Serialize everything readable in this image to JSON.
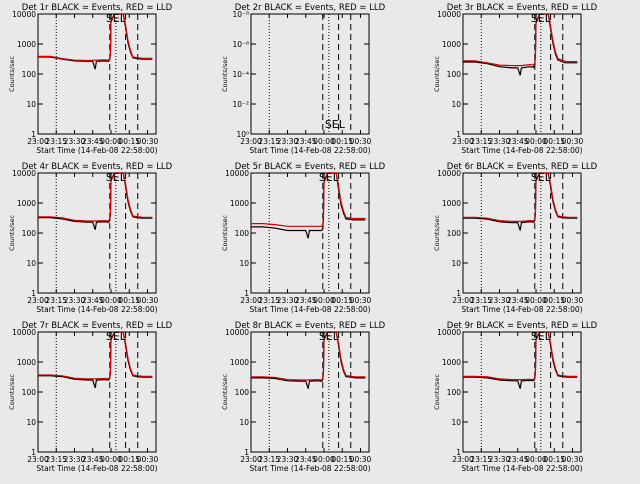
{
  "chart_data": {
    "type": "line",
    "x_tick_labels": [
      "23:00",
      "23:15",
      "23:30",
      "23:45",
      "00:00",
      "00:15",
      "00:30"
    ],
    "x_label": "Start Time (14-Feb-08 22:58:00)",
    "y_label": "Counts/sec",
    "line_colors": {
      "events": "#000000",
      "lld": "#d40000"
    },
    "reference_lines": {
      "dotted": [
        "23:15",
        "00:04"
      ],
      "dashed": [
        "23:59",
        "00:12",
        "00:22"
      ]
    },
    "x": [
      "23:00",
      "23:10",
      "23:20",
      "23:30",
      "23:40",
      "23:44",
      "23:45",
      "23:47",
      "23:48",
      "23:55",
      "23:58",
      "23:59",
      "23:59:30",
      "00:00",
      "00:03",
      "00:05",
      "00:08",
      "00:10",
      "00:12",
      "00:14",
      "00:16",
      "00:18",
      "00:22",
      "00:24",
      "00:26",
      "00:30",
      "00:34"
    ],
    "charts": [
      {
        "id": "det1",
        "title": "Det 1r BLACK = Events, RED = LLD",
        "y_ticks": [
          "1",
          "10",
          "100",
          "1000",
          "10000"
        ],
        "ylim": [
          1,
          15000
        ],
        "scale": "log",
        "annotation": "SEL",
        "series": [
          {
            "color": "black",
            "values": [
              480,
              480,
              400,
              350,
              340,
              340,
              340,
              180,
              340,
              350,
              340,
              400,
              600,
              8000,
              15000,
              15000,
              15000,
              15000,
              5000,
              1500,
              700,
              450,
              420,
              410,
              400,
              400,
              400
            ]
          },
          {
            "color": "red",
            "values": [
              500,
              500,
              420,
              370,
              360,
              360,
              370,
              370,
              370,
              380,
              370,
              420,
              650,
              9000,
              15000,
              15000,
              15000,
              15000,
              6000,
              1800,
              800,
              480,
              450,
              440,
              430,
              430,
              430
            ]
          }
        ]
      },
      {
        "id": "det2",
        "title": "Det 2r BLACK = Events, RED = LLD",
        "y_ticks": [
          "10⁰",
          "10⁻²",
          "10⁻⁴",
          "10⁻⁶",
          "10⁻⁸"
        ],
        "ylim": [
          1,
          1e-08
        ],
        "scale": "log",
        "annotation": "SEL",
        "series": []
      },
      {
        "id": "det3",
        "title": "Det 3r BLACK = Events, RED = LLD",
        "y_ticks": [
          "1",
          "10",
          "100",
          "1000",
          "10000"
        ],
        "ylim": [
          1,
          15000
        ],
        "scale": "log",
        "annotation": "SEL",
        "series": [
          {
            "color": "black",
            "values": [
              320,
              320,
              280,
              220,
              200,
              200,
              200,
              110,
              200,
              220,
              210,
              260,
              500,
              7000,
              15000,
              15000,
              15000,
              15000,
              4500,
              1400,
              600,
              380,
              320,
              300,
              300,
              300,
              300
            ]
          },
          {
            "color": "red",
            "values": [
              350,
              350,
              300,
              250,
              240,
              240,
              240,
              240,
              240,
              260,
              250,
              300,
              560,
              8000,
              15000,
              15000,
              15000,
              15000,
              5500,
              1700,
              700,
              420,
              360,
              340,
              330,
              330,
              330
            ]
          }
        ]
      },
      {
        "id": "det4",
        "title": "Det 4r BLACK = Events, RED = LLD",
        "y_ticks": [
          "1",
          "10",
          "100",
          "1000",
          "10000"
        ],
        "ylim": [
          1,
          15000
        ],
        "scale": "log",
        "annotation": "SEL",
        "series": [
          {
            "color": "black",
            "values": [
              420,
              420,
              380,
              310,
              290,
              290,
              290,
              160,
              290,
              300,
              290,
              350,
              550,
              8000,
              15000,
              15000,
              15000,
              15000,
              5000,
              1500,
              700,
              450,
              420,
              410,
              400,
              400,
              400
            ]
          },
          {
            "color": "red",
            "values": [
              450,
              450,
              410,
              340,
              320,
              320,
              320,
              320,
              320,
              330,
              320,
              380,
              600,
              9000,
              15000,
              15000,
              15000,
              15000,
              6000,
              1800,
              800,
              480,
              450,
              440,
              430,
              430,
              430
            ]
          }
        ]
      },
      {
        "id": "det5",
        "title": "Det 5r BLACK = Events, RED = LLD",
        "y_ticks": [
          "1",
          "10",
          "100",
          "1000",
          "10000"
        ],
        "ylim": [
          1,
          15000
        ],
        "scale": "log",
        "annotation": "SEL",
        "series": [
          {
            "color": "black",
            "values": [
              200,
              200,
              180,
              150,
              150,
              150,
              150,
              80,
              150,
              150,
              150,
              170,
              400,
              7000,
              15000,
              15000,
              15000,
              15000,
              4000,
              1200,
              600,
              380,
              360,
              350,
              350,
              350,
              350
            ]
          },
          {
            "color": "red",
            "values": [
              260,
              260,
              240,
              210,
              210,
              210,
              210,
              210,
              210,
              210,
              210,
              230,
              480,
              8000,
              15000,
              15000,
              15000,
              15000,
              5000,
              1500,
              700,
              430,
              400,
              390,
              390,
              390,
              390
            ]
          }
        ]
      },
      {
        "id": "det6",
        "title": "Det 6r BLACK = Events, RED = LLD",
        "y_ticks": [
          "1",
          "10",
          "100",
          "1000",
          "10000"
        ],
        "ylim": [
          1,
          15000
        ],
        "scale": "log",
        "annotation": "SEL",
        "series": [
          {
            "color": "black",
            "values": [
              400,
              400,
              370,
              300,
              280,
              280,
              280,
              150,
              280,
              300,
              290,
              340,
              550,
              8000,
              15000,
              15000,
              15000,
              15000,
              5000,
              1500,
              700,
              450,
              420,
              410,
              400,
              400,
              400
            ]
          },
          {
            "color": "red",
            "values": [
              430,
              430,
              400,
              330,
              310,
              310,
              310,
              310,
              310,
              330,
              320,
              370,
              600,
              9000,
              15000,
              15000,
              15000,
              15000,
              6000,
              1800,
              800,
              480,
              450,
              440,
              430,
              430,
              430
            ]
          }
        ]
      },
      {
        "id": "det7",
        "title": "Det 7r BLACK = Events, RED = LLD",
        "y_ticks": [
          "1",
          "10",
          "100",
          "1000",
          "10000"
        ],
        "ylim": [
          1,
          15000
        ],
        "scale": "log",
        "annotation": "SEL",
        "series": [
          {
            "color": "black",
            "values": [
              450,
              450,
              420,
              340,
              320,
              320,
              320,
              170,
              320,
              330,
              320,
              380,
              580,
              8000,
              15000,
              15000,
              15000,
              15000,
              5000,
              1500,
              700,
              450,
              420,
              410,
              400,
              400,
              400
            ]
          },
          {
            "color": "red",
            "values": [
              480,
              480,
              450,
              370,
              350,
              350,
              350,
              350,
              350,
              360,
              350,
              410,
              630,
              9000,
              15000,
              15000,
              15000,
              15000,
              6000,
              1800,
              800,
              480,
              450,
              440,
              430,
              430,
              430
            ]
          }
        ]
      },
      {
        "id": "det8",
        "title": "Det 8r BLACK = Events, RED = LLD",
        "y_ticks": [
          "1",
          "10",
          "100",
          "1000",
          "10000"
        ],
        "ylim": [
          1,
          15000
        ],
        "scale": "log",
        "annotation": "SEL",
        "series": [
          {
            "color": "black",
            "values": [
              380,
              380,
              360,
              300,
              290,
              290,
              290,
              160,
              290,
              300,
              290,
              340,
              560,
              8000,
              15000,
              15000,
              15000,
              15000,
              5000,
              1400,
              650,
              420,
              400,
              390,
              380,
              380,
              380
            ]
          },
          {
            "color": "red",
            "values": [
              410,
              410,
              390,
              330,
              320,
              320,
              320,
              320,
              320,
              330,
              320,
              370,
              610,
              9000,
              15000,
              15000,
              15000,
              15000,
              6000,
              1700,
              750,
              460,
              430,
              420,
              410,
              410,
              410
            ]
          }
        ]
      },
      {
        "id": "det9",
        "title": "Det 9r BLACK = Events, RED = LLD",
        "y_ticks": [
          "1",
          "10",
          "100",
          "1000",
          "10000"
        ],
        "ylim": [
          1,
          15000
        ],
        "scale": "log",
        "annotation": "SEL",
        "series": [
          {
            "color": "black",
            "values": [
              400,
              400,
              380,
              320,
              300,
              300,
              300,
              160,
              300,
              310,
              300,
              350,
              560,
              8000,
              15000,
              15000,
              15000,
              15000,
              5000,
              1500,
              700,
              450,
              420,
              410,
              400,
              400,
              400
            ]
          },
          {
            "color": "red",
            "values": [
              430,
              430,
              410,
              350,
              330,
              330,
              330,
              330,
              330,
              340,
              330,
              380,
              610,
              9000,
              15000,
              15000,
              15000,
              15000,
              6000,
              1800,
              800,
              480,
              450,
              440,
              430,
              430,
              430
            ]
          }
        ]
      }
    ]
  }
}
